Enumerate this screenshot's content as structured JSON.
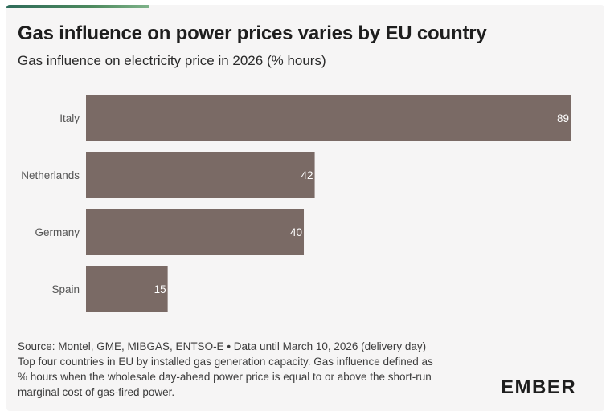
{
  "header": {
    "title": "Gas influence on power prices varies by EU country",
    "subtitle": "Gas influence on electricity price in 2026 (% hours)"
  },
  "chart_data": {
    "type": "bar",
    "orientation": "horizontal",
    "categories": [
      "Italy",
      "Netherlands",
      "Germany",
      "Spain"
    ],
    "values": [
      89,
      42,
      40,
      15
    ],
    "title": "Gas influence on electricity price in 2026 (% hours)",
    "xlabel": "",
    "ylabel": "",
    "xlim": [
      0,
      89
    ],
    "grid": false,
    "data_labels": true,
    "colors": {
      "bar": "#7a6a65",
      "label": "#ffffff",
      "category": "#555555"
    }
  },
  "footer": {
    "source": "Source: Montel, GME, MIBGAS, ENTSO-E • Data until March 10, 2026 (delivery day)",
    "note_lines": [
      "Top four countries in EU by installed gas generation capacity. Gas influence defined as",
      "% hours when the wholesale day-ahead power price is equal to or above the short-run",
      "marginal cost of gas-fired power."
    ]
  },
  "brand": {
    "logo_text": "EMBER",
    "accent_color": "#2e6b5a"
  }
}
